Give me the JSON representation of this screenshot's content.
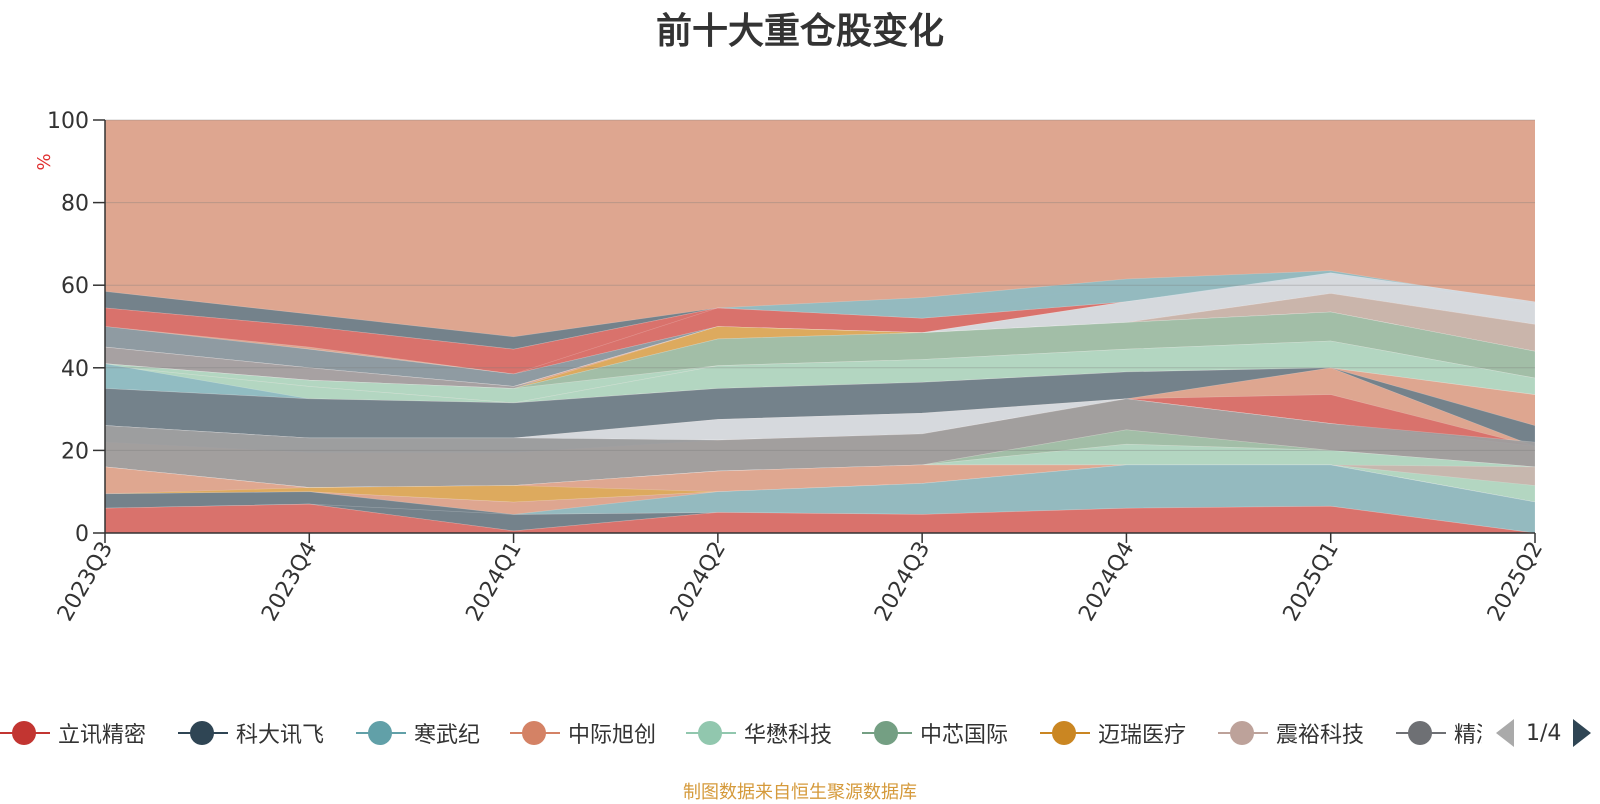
{
  "chart_data": {
    "type": "area",
    "title": "前十大重仓股变化",
    "ylabel": "%",
    "ylim": [
      0,
      100
    ],
    "yticks": [
      "0",
      "20",
      "40",
      "60",
      "80",
      "100"
    ],
    "categories": [
      "2023Q3",
      "2023Q4",
      "2024Q1",
      "2024Q2",
      "2024Q3",
      "2024Q4",
      "2025Q1",
      "2025Q2"
    ],
    "grid": true,
    "legend_position": "bottom",
    "stack_background_color": "#dea690",
    "bands": [
      {
        "color": "#6e7f8b",
        "lower": [
          54.5,
          50.0,
          44.5,
          54.5,
          52.0,
          61.0,
          62.5,
          55.5
        ],
        "upper": [
          58.5,
          53.0,
          47.5,
          54.5,
          52.0,
          61.0,
          62.5,
          55.5
        ]
      },
      {
        "color": "#d86f6a",
        "lower": [
          50.0,
          45.0,
          38.5,
          50.0,
          48.5,
          56.0,
          62.5,
          55.5
        ],
        "upper": [
          54.5,
          50.0,
          44.5,
          54.5,
          52.0,
          56.0,
          62.5,
          55.5
        ]
      },
      {
        "color": "#8fbac2",
        "lower": [
          49.5,
          44.5,
          38.5,
          54.5,
          52.0,
          56.0,
          62.5,
          55.5
        ],
        "upper": [
          49.5,
          44.5,
          38.5,
          54.5,
          57.0,
          61.5,
          63.5,
          55.5
        ]
      },
      {
        "color": "#8a9aa3",
        "lower": [
          45.0,
          40.0,
          35.5,
          50.0,
          48.5,
          56.0,
          62.5,
          55.5
        ],
        "upper": [
          50.0,
          44.5,
          38.5,
          50.0,
          48.5,
          56.0,
          62.5,
          55.5
        ]
      },
      {
        "color": "#d5dbe2",
        "lower": [
          45.0,
          40.0,
          35.5,
          50.0,
          48.5,
          51.0,
          58.0,
          50.5
        ],
        "upper": [
          45.0,
          40.0,
          35.5,
          50.0,
          48.5,
          56.0,
          63.0,
          56.0
        ]
      },
      {
        "color": "#c8b5ad",
        "lower": [
          45.0,
          40.0,
          35.5,
          50.0,
          48.5,
          51.0,
          53.5,
          44.0
        ],
        "upper": [
          45.0,
          40.0,
          35.5,
          50.0,
          48.5,
          51.0,
          58.0,
          50.5
        ]
      },
      {
        "color": "#a3a0a3",
        "lower": [
          41.0,
          37.0,
          35.0,
          47.0,
          48.5,
          51.0,
          53.5,
          44.0
        ],
        "upper": [
          45.0,
          40.0,
          35.5,
          47.0,
          48.5,
          51.0,
          53.5,
          44.0
        ]
      },
      {
        "color": "#dcaa5c",
        "lower": [
          41.0,
          37.0,
          35.0,
          47.0,
          48.5,
          51.0,
          53.5,
          44.0
        ],
        "upper": [
          41.0,
          37.0,
          35.0,
          50.0,
          48.5,
          51.0,
          53.5,
          44.0
        ]
      },
      {
        "color": "#9ebfa9",
        "lower": [
          41.0,
          37.0,
          35.0,
          40.5,
          42.0,
          44.5,
          46.5,
          37.5
        ],
        "upper": [
          41.0,
          37.0,
          35.0,
          47.0,
          48.5,
          51.0,
          53.5,
          44.0
        ]
      },
      {
        "color": "#b0d8c4",
        "lower": [
          40.5,
          35.5,
          31.5,
          40.5,
          42.0,
          44.5,
          46.5,
          37.5
        ],
        "upper": [
          41.0,
          37.0,
          35.0,
          40.5,
          42.0,
          44.5,
          46.5,
          37.5
        ]
      },
      {
        "color": "#b0d8c4",
        "lower": [
          35.0,
          32.5,
          31.5,
          35.0,
          36.5,
          39.0,
          40.0,
          33.5
        ],
        "upper": [
          40.5,
          35.5,
          31.5,
          40.5,
          42.0,
          44.5,
          46.5,
          37.5
        ]
      },
      {
        "color": "#8fbac2",
        "lower": [
          35.0,
          32.5,
          31.5,
          35.0,
          36.5,
          39.0,
          40.0,
          33.5
        ],
        "upper": [
          41.0,
          32.5,
          31.5,
          35.0,
          36.5,
          39.0,
          40.0,
          33.5
        ]
      },
      {
        "color": "#6e7f8b",
        "lower": [
          26.0,
          23.0,
          23.0,
          27.5,
          29.0,
          32.5,
          40.0,
          21.0
        ],
        "upper": [
          35.0,
          32.5,
          31.5,
          35.0,
          36.5,
          39.0,
          40.0,
          26.0
        ]
      },
      {
        "color": "#d86f6a",
        "lower": [
          26.0,
          23.0,
          23.0,
          27.5,
          29.0,
          32.5,
          26.5,
          21.0
        ],
        "upper": [
          26.0,
          23.0,
          23.0,
          27.5,
          29.0,
          32.5,
          33.5,
          21.0
        ]
      },
      {
        "color": "#d5dbe2",
        "lower": [
          26.0,
          23.0,
          23.0,
          22.5,
          24.0,
          32.5,
          26.5,
          21.0
        ],
        "upper": [
          26.0,
          23.0,
          23.0,
          27.5,
          29.0,
          32.5,
          26.5,
          21.0
        ]
      },
      {
        "color": "#8a9aa3",
        "lower": [
          22.0,
          19.5,
          19.5,
          22.5,
          24.0,
          32.5,
          26.5,
          21.0
        ],
        "upper": [
          26.0,
          23.0,
          23.0,
          22.5,
          24.0,
          32.5,
          26.5,
          21.0
        ]
      },
      {
        "color": "#9e9e9f",
        "lower": [
          16.0,
          11.0,
          11.5,
          15.0,
          16.5,
          25.0,
          20.0,
          16.0
        ],
        "upper": [
          26.0,
          23.0,
          23.0,
          22.5,
          24.0,
          32.5,
          26.5,
          22.0
        ]
      },
      {
        "color": "#9ebfa9",
        "lower": [
          16.0,
          11.0,
          11.5,
          15.0,
          16.5,
          21.5,
          20.0,
          16.0
        ],
        "upper": [
          16.0,
          11.0,
          11.5,
          15.0,
          16.5,
          25.0,
          20.0,
          16.0
        ]
      },
      {
        "color": "#b0d8c4",
        "lower": [
          16.0,
          11.0,
          11.5,
          15.0,
          16.5,
          16.5,
          16.5,
          7.5
        ],
        "upper": [
          16.0,
          11.0,
          11.5,
          15.0,
          16.5,
          21.5,
          20.0,
          16.0
        ]
      },
      {
        "color": "#c8b5ad",
        "lower": [
          16.0,
          11.0,
          11.5,
          15.0,
          16.5,
          16.5,
          16.5,
          11.5
        ],
        "upper": [
          16.0,
          11.0,
          11.5,
          15.0,
          16.5,
          16.5,
          16.5,
          16.0
        ]
      },
      {
        "color": "#dea690",
        "lower": [
          9.5,
          10.0,
          7.5,
          10.0,
          12.0,
          16.5,
          16.5,
          7.5
        ],
        "upper": [
          16.0,
          11.0,
          11.5,
          15.0,
          16.5,
          16.5,
          16.5,
          7.5
        ]
      },
      {
        "color": "#dcaa5c",
        "lower": [
          9.5,
          10.0,
          7.5,
          10.0,
          12.0,
          16.5,
          16.5,
          7.5
        ],
        "upper": [
          9.5,
          11.0,
          11.5,
          10.0,
          12.0,
          16.5,
          16.5,
          7.5
        ]
      },
      {
        "color": "#6e7f8b",
        "lower": [
          6.0,
          7.0,
          0.5,
          5.0,
          4.5,
          6.0,
          6.5,
          0.0
        ],
        "upper": [
          9.5,
          10.0,
          4.5,
          5.0,
          4.5,
          6.0,
          6.5,
          0.0
        ]
      },
      {
        "color": "#8fbac2",
        "lower": [
          6.0,
          7.0,
          4.5,
          5.0,
          4.5,
          6.0,
          6.5,
          0.0
        ],
        "upper": [
          6.0,
          7.0,
          4.5,
          10.0,
          12.0,
          16.5,
          16.5,
          7.5
        ]
      },
      {
        "color": "#d86f6a",
        "lower": [
          0.0,
          0.0,
          0.0,
          0.0,
          0.0,
          0.0,
          0.0,
          0.0
        ],
        "upper": [
          6.0,
          7.0,
          0.5,
          5.0,
          4.5,
          6.0,
          6.5,
          0.0
        ]
      }
    ],
    "series": [
      {
        "name": "立讯精密",
        "color": "#c23531"
      },
      {
        "name": "科大讯飞",
        "color": "#2f4554"
      },
      {
        "name": "寒武纪",
        "color": "#61a0a8"
      },
      {
        "name": "中际旭创",
        "color": "#d48265"
      },
      {
        "name": "华懋科技",
        "color": "#91c7ae"
      },
      {
        "name": "中芯国际",
        "color": "#749f83"
      },
      {
        "name": "迈瑞医疗",
        "color": "#ca8622"
      },
      {
        "name": "震裕科技",
        "color": "#bda29a"
      },
      {
        "name": "精测电子",
        "color": "#6e7074"
      }
    ]
  },
  "legend": {
    "page_indicator": "1/4",
    "prev_icon": "triangle-left-icon",
    "next_icon": "triangle-right-icon"
  },
  "footer": {
    "source_note": "制图数据来自恒生聚源数据库"
  }
}
